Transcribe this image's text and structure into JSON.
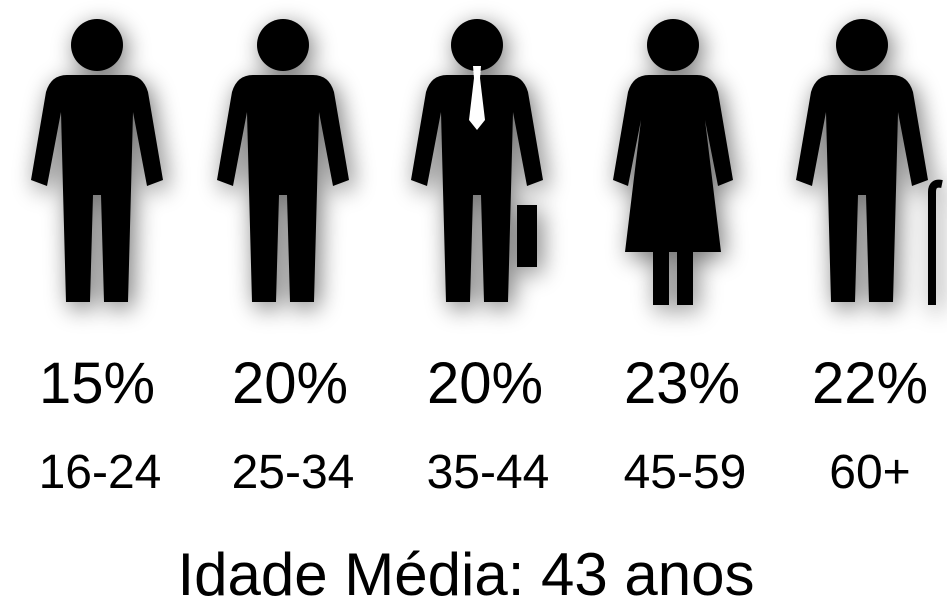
{
  "groups": [
    {
      "percent": "15%",
      "age": "16-24"
    },
    {
      "percent": "20%",
      "age": "25-34"
    },
    {
      "percent": "20%",
      "age": "35-44"
    },
    {
      "percent": "23%",
      "age": "45-59"
    },
    {
      "percent": "22%",
      "age": "60+"
    }
  ],
  "footer": "Idade Média: 43 anos"
}
